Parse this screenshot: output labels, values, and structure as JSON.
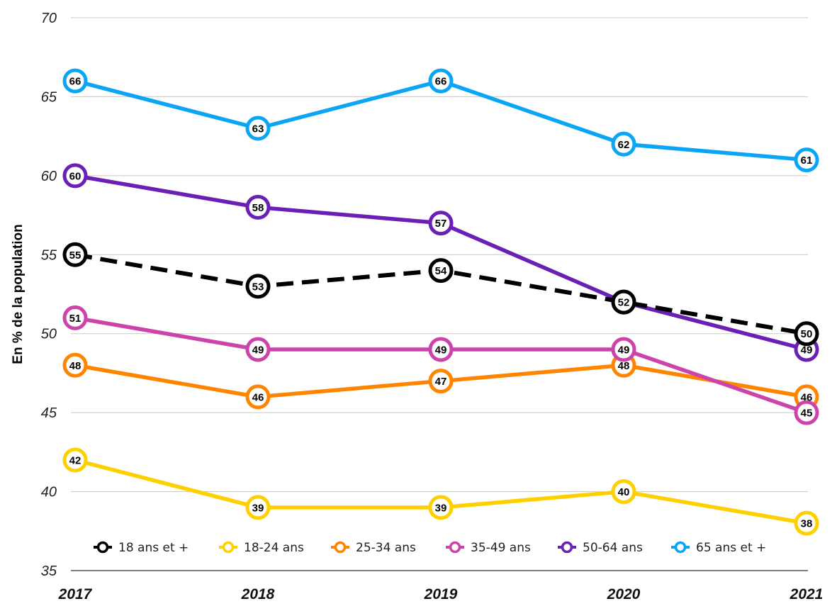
{
  "chart_data": {
    "type": "line",
    "ylabel": "En % de la population",
    "xlabel": "",
    "x": [
      "2017",
      "2018",
      "2019",
      "2020",
      "2021"
    ],
    "ylim": [
      35,
      70
    ],
    "yticks": [
      "35",
      "40",
      "45",
      "50",
      "55",
      "60",
      "65",
      "70"
    ],
    "grid": true,
    "legend_position": "bottom",
    "series": [
      {
        "name": "18 ans et +",
        "values": [
          55,
          53,
          54,
          52,
          50
        ],
        "color": "#000000",
        "dashed": true
      },
      {
        "name": "18-24 ans",
        "values": [
          42,
          39,
          39,
          40,
          38
        ],
        "color": "#FFD000",
        "dashed": false
      },
      {
        "name": "25-34 ans",
        "values": [
          48,
          46,
          47,
          48,
          46
        ],
        "color": "#FF8500",
        "dashed": false
      },
      {
        "name": "35-49 ans",
        "values": [
          51,
          49,
          49,
          49,
          45
        ],
        "color": "#CC44AA",
        "dashed": false
      },
      {
        "name": "50-64 ans",
        "values": [
          60,
          58,
          57,
          52,
          49
        ],
        "color": "#6A1FB5",
        "dashed": false
      },
      {
        "name": "65 ans et +",
        "values": [
          66,
          63,
          66,
          62,
          61
        ],
        "color": "#0AA5F5",
        "dashed": false
      }
    ]
  }
}
